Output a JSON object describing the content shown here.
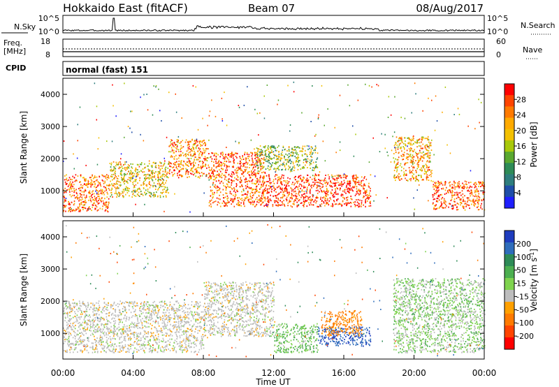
{
  "header": {
    "title": "Hokkaido East (fitACF)",
    "beam": "Beam 07",
    "date": "08/Aug/2017"
  },
  "top_panels": {
    "nsky_label": "N.Sky",
    "nsky_ticks": [
      "10^5",
      "10^0"
    ],
    "nsearch_label": "N.Search",
    "nsearch_ticks": [
      "10^5",
      "10^0"
    ],
    "freq_label_1": "Freq.",
    "freq_label_2": "[MHz]",
    "freq_ticks": [
      "18",
      "8"
    ],
    "nave_label": "Nave",
    "nave_ticks": [
      "60",
      "0"
    ],
    "cpid_label": "CPID",
    "cpid_text": "normal (fast) 151"
  },
  "chart_data": [
    {
      "type": "heatmap",
      "name": "power",
      "ylabel": "Slant Range [km]",
      "yticks": [
        "1000",
        "2000",
        "3000",
        "4000"
      ],
      "ylim": [
        200,
        4500
      ],
      "colorbar": {
        "label": "Power [dB]",
        "ticks": [
          "28",
          "24",
          "20",
          "16",
          "12",
          "8",
          "4"
        ],
        "colors": [
          "#ff0000",
          "#ff4400",
          "#ff7a00",
          "#ffaa00",
          "#f3c000",
          "#a8c80a",
          "#5aa830",
          "#2e8b57",
          "#2e7d7d",
          "#1f4ea8",
          "#1f1fff"
        ]
      },
      "regions": [
        {
          "t0": 0.0,
          "t1": 2.6,
          "r0": 350,
          "r1": 1500,
          "level": 26
        },
        {
          "t0": 2.6,
          "t1": 6.0,
          "r0": 800,
          "r1": 1900,
          "level": 20
        },
        {
          "t0": 6.0,
          "t1": 8.3,
          "r0": 1400,
          "r1": 2600,
          "level": 24
        },
        {
          "t0": 8.3,
          "t1": 11.5,
          "r0": 500,
          "r1": 2200,
          "level": 26
        },
        {
          "t0": 11.5,
          "t1": 17.5,
          "r0": 500,
          "r1": 1500,
          "level": 28
        },
        {
          "t0": 11.0,
          "t1": 14.5,
          "r0": 1600,
          "r1": 2400,
          "level": 16
        },
        {
          "t0": 18.8,
          "t1": 21.0,
          "r0": 1300,
          "r1": 2700,
          "level": 22
        },
        {
          "t0": 21.0,
          "t1": 24.0,
          "r0": 400,
          "r1": 1300,
          "level": 26
        }
      ]
    },
    {
      "type": "heatmap",
      "name": "velocity",
      "xlabel": "Time UT",
      "xticks": [
        "00:00",
        "04:00",
        "08:00",
        "12:00",
        "16:00",
        "20:00",
        "00:00"
      ],
      "xlim": [
        0,
        24
      ],
      "ylabel": "Slant Range [km]",
      "yticks": [
        "1000",
        "2000",
        "3000",
        "4000"
      ],
      "ylim": [
        200,
        4500
      ],
      "colorbar": {
        "label": "Velocity [m s^-1]",
        "ticks": [
          "200",
          "100",
          "50",
          "15",
          "-15",
          "-50",
          "-100",
          "-200"
        ],
        "colors": [
          "#1e3cbe",
          "#2f6dbb",
          "#2e8b57",
          "#4caf50",
          "#7fd34e",
          "#bdbdbd",
          "#ffa000",
          "#ff7a00",
          "#ff4400",
          "#ff0000"
        ]
      },
      "regions": [
        {
          "t0": 0.0,
          "t1": 8.0,
          "r0": 400,
          "r1": 2000,
          "v": 0
        },
        {
          "t0": 8.0,
          "t1": 12.0,
          "r0": 900,
          "r1": 2600,
          "v": 0
        },
        {
          "t0": 12.0,
          "t1": 14.5,
          "r0": 400,
          "r1": 1300,
          "v": 30
        },
        {
          "t0": 14.5,
          "t1": 17.5,
          "r0": 600,
          "r1": 1200,
          "v": 150
        },
        {
          "t0": 14.7,
          "t1": 17.0,
          "r0": 900,
          "r1": 1700,
          "v": -60
        },
        {
          "t0": 18.8,
          "t1": 24.0,
          "r0": 400,
          "r1": 2700,
          "v": 20
        }
      ]
    }
  ]
}
